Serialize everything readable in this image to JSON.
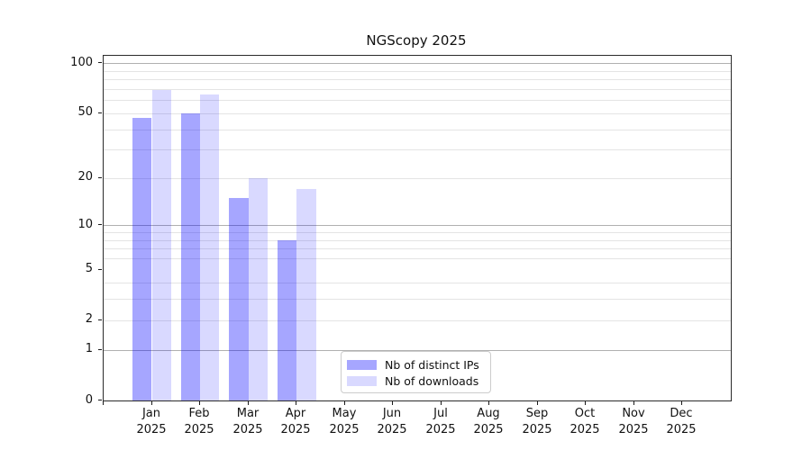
{
  "title": "NGScopy 2025",
  "chart_data": {
    "type": "bar",
    "title": "NGScopy 2025",
    "categories": [
      "Jan",
      "Feb",
      "Mar",
      "Apr",
      "May",
      "Jun",
      "Jul",
      "Aug",
      "Sep",
      "Oct",
      "Nov",
      "Dec"
    ],
    "year_label": "2025",
    "series": [
      {
        "name": "Nb of distinct IPs",
        "color": "#0000ff",
        "alpha": 0.35,
        "values": [
          47,
          50,
          15,
          8,
          0,
          0,
          0,
          0,
          0,
          0,
          0,
          0
        ]
      },
      {
        "name": "Nb of downloads",
        "color": "#0000ff",
        "alpha": 0.15,
        "values": [
          69,
          65,
          20,
          17,
          0,
          0,
          0,
          0,
          0,
          0,
          0,
          0
        ]
      }
    ],
    "yscale": "log1p",
    "ylim": [
      0,
      111
    ],
    "yticks": [
      0,
      1,
      2,
      5,
      10,
      20,
      50,
      100
    ],
    "major_gridlines": [
      1,
      10,
      100
    ],
    "minor_gridlines": [
      2,
      3,
      4,
      6,
      7,
      8,
      9,
      20,
      30,
      40,
      50,
      60,
      70,
      80,
      90
    ],
    "grid": true,
    "grid_major_color": "#b0b0b0",
    "grid_minor_color": "#e4e4e4",
    "legend_position": "lower-center",
    "xlabel": "",
    "ylabel": ""
  }
}
